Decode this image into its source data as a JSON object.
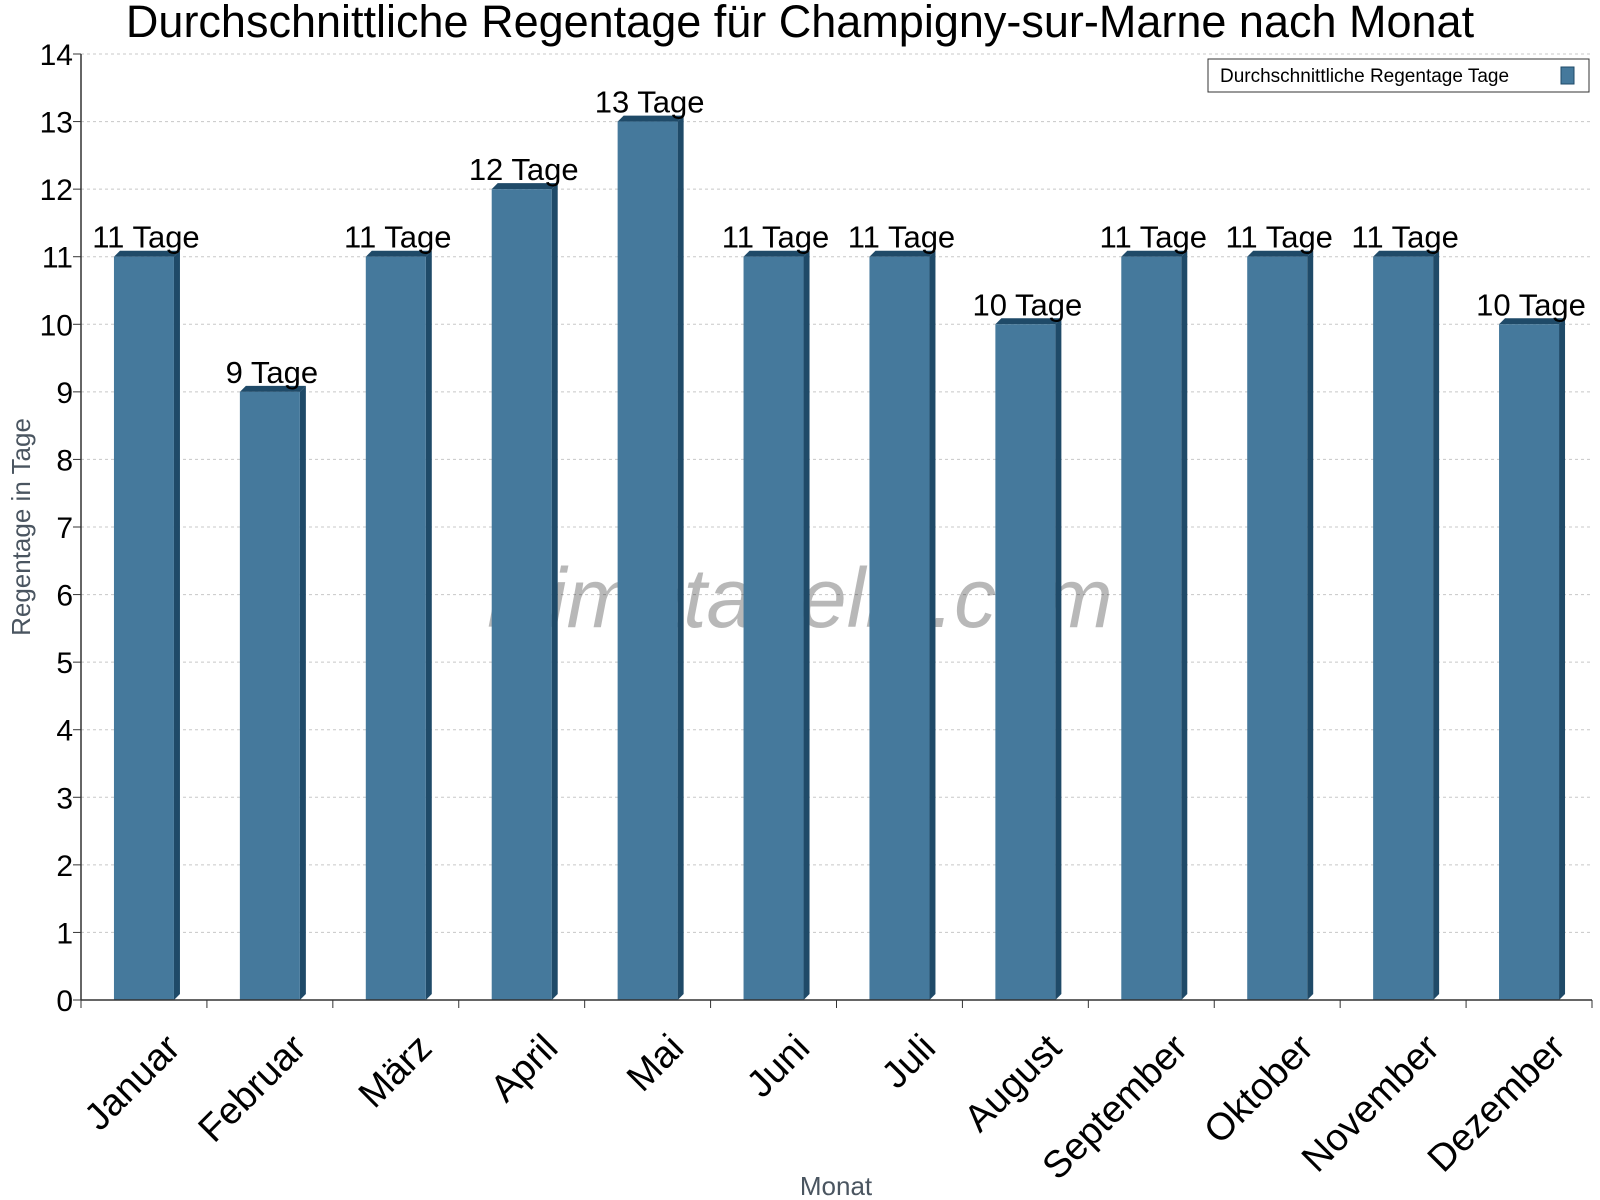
{
  "chart_data": {
    "type": "bar",
    "title": "Durchschnittliche Regentage für Champigny-sur-Marne nach Monat",
    "xlabel": "Monat",
    "ylabel": "Regentage in Tage",
    "categories": [
      "Januar",
      "Februar",
      "März",
      "April",
      "Mai",
      "Juni",
      "Juli",
      "August",
      "September",
      "Oktober",
      "November",
      "Dezember"
    ],
    "series": [
      {
        "name": "Durchschnittliche Regentage Tage",
        "values": [
          11,
          9,
          11,
          12,
          13,
          11,
          11,
          10,
          11,
          11,
          11,
          10
        ],
        "labels": [
          "11 Tage",
          "9 Tage",
          "11 Tage",
          "12 Tage",
          "13 Tage",
          "11 Tage",
          "11 Tage",
          "10 Tage",
          "11 Tage",
          "11 Tage",
          "11 Tage",
          "10 Tage"
        ],
        "color": "#45799c"
      }
    ],
    "ylim": [
      0,
      14
    ],
    "yticks": [
      "0",
      "1",
      "2",
      "3",
      "4",
      "5",
      "6",
      "7",
      "8",
      "9",
      "10",
      "11",
      "12",
      "13",
      "14"
    ],
    "grid": true,
    "legend_position": "top-right",
    "watermark": "klimatabelle.com"
  }
}
